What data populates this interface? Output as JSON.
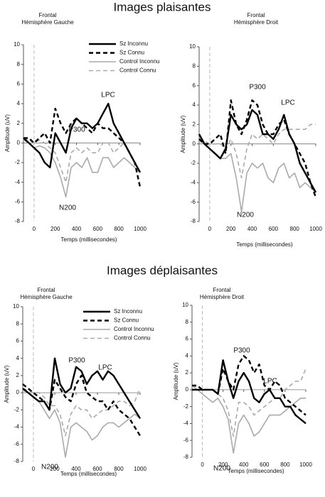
{
  "headings": [
    "Images plaisantes",
    "Images déplaisantes"
  ],
  "chart_data": [
    {
      "type": "line",
      "title": "Frontal",
      "subtitle": "Hémisphère Gauche",
      "xlabel": "Temps (millisecondes)",
      "ylabel": "Amplitude (uV)",
      "x": [
        -100,
        -50,
        0,
        50,
        100,
        150,
        200,
        250,
        300,
        350,
        400,
        450,
        500,
        550,
        600,
        650,
        700,
        750,
        800,
        850,
        900,
        950,
        1000
      ],
      "series": [
        {
          "name": "Sz Inconnu",
          "color": "#000000",
          "dash": "solid",
          "values": [
            0.5,
            0,
            -0.5,
            -1,
            -2,
            -2.5,
            1,
            0,
            -1,
            1.5,
            2.5,
            2,
            2,
            1.5,
            2,
            3,
            4,
            2,
            1,
            0,
            -1,
            -2,
            -3
          ]
        },
        {
          "name": "Sz Connu",
          "color": "#000000",
          "dash": "dashed",
          "values": [
            0.5,
            0.5,
            0,
            0.5,
            1,
            0,
            3.5,
            2,
            1,
            2,
            2.5,
            2,
            1.5,
            1,
            2,
            1.5,
            1.5,
            1,
            0.5,
            0,
            -1,
            -2,
            -4.5
          ]
        },
        {
          "name": "Control Inconnu",
          "color": "#aaaaaa",
          "dash": "solid",
          "values": [
            0.3,
            0,
            -0.5,
            -0.3,
            -0.5,
            -1,
            -2,
            -3.5,
            -5.5,
            -2.5,
            -2,
            -2.5,
            -1.5,
            -3,
            -3,
            -1.5,
            -1.5,
            -2.5,
            -2,
            -1.5,
            -2,
            -2.5,
            -3
          ]
        },
        {
          "name": "Control Connu",
          "color": "#aaaaaa",
          "dash": "dashed",
          "values": [
            0.5,
            0.3,
            0,
            0.3,
            0,
            -0.5,
            -1,
            -2.5,
            -4,
            -1,
            -0.5,
            -1,
            -0.5,
            -1,
            -1,
            0,
            0,
            -1,
            -0.5,
            0,
            0,
            0,
            0
          ]
        }
      ],
      "xlim": [
        -100,
        1000
      ],
      "ylim": [
        -8,
        10
      ],
      "xticks": [
        0,
        200,
        400,
        600,
        800,
        1000
      ],
      "yticks": [
        -8,
        -6,
        -4,
        -2,
        0,
        2,
        4,
        6,
        8,
        10
      ],
      "legend": true,
      "annotations": [
        "P300",
        "LPC",
        "N200"
      ]
    },
    {
      "type": "line",
      "title": "Frontal",
      "subtitle": "Hémisphère Droit",
      "xlabel": "Temps (millisecondes)",
      "ylabel": "Amplitude (uV)",
      "x": [
        -100,
        -50,
        0,
        50,
        100,
        150,
        200,
        250,
        300,
        350,
        400,
        450,
        500,
        550,
        600,
        650,
        700,
        750,
        800,
        850,
        900,
        950,
        1000
      ],
      "series": [
        {
          "color": "#000000",
          "dash": "solid",
          "values": [
            1,
            0,
            -0.5,
            -1,
            -1.5,
            -0.5,
            3,
            2,
            1.5,
            2,
            3.5,
            3,
            1,
            1,
            0.5,
            1.5,
            3,
            1,
            0,
            -2,
            -3,
            -4,
            -5
          ]
        },
        {
          "color": "#000000",
          "dash": "dashed",
          "values": [
            0.5,
            0,
            0,
            0.5,
            1,
            -1,
            4.5,
            2,
            1,
            2.5,
            4.5,
            4,
            2,
            1,
            1,
            2,
            2.5,
            1,
            0,
            -1,
            -2,
            -4,
            -5.5
          ]
        },
        {
          "color": "#aaaaaa",
          "dash": "solid",
          "values": [
            0.3,
            0,
            -0.5,
            -1,
            -1.5,
            -1.5,
            -1,
            -3.5,
            -7,
            -3,
            -2,
            -2.5,
            -2,
            -3.5,
            -4,
            -2.5,
            -2,
            -3.5,
            -3,
            -4.5,
            -4,
            -4.5,
            -5
          ]
        },
        {
          "color": "#aaaaaa",
          "dash": "dashed",
          "values": [
            0.5,
            0.3,
            0,
            0,
            0,
            -0.5,
            0.5,
            -1,
            -3.5,
            -0.5,
            1,
            0.5,
            1,
            0.5,
            0,
            1,
            1.5,
            1.5,
            1.5,
            1.5,
            1.5,
            2,
            2
          ]
        }
      ],
      "xlim": [
        -100,
        1000
      ],
      "ylim": [
        -8,
        10
      ],
      "xticks": [
        0,
        200,
        400,
        600,
        800,
        1000
      ],
      "yticks": [
        -8,
        -6,
        -4,
        -2,
        0,
        2,
        4,
        6,
        8,
        10
      ],
      "legend": false,
      "annotations": [
        "P300",
        "LPC",
        "N200"
      ]
    },
    {
      "type": "line",
      "title": "Frontal",
      "subtitle": "Hémisphère Gauche",
      "xlabel": "Temps (millisecondes)",
      "ylabel": "Amplitude (uV)",
      "x": [
        -100,
        -50,
        0,
        50,
        100,
        150,
        200,
        250,
        300,
        350,
        400,
        450,
        500,
        550,
        600,
        650,
        700,
        750,
        800,
        850,
        900,
        950,
        1000
      ],
      "series": [
        {
          "name": "Sz Inconnu",
          "color": "#000000",
          "dash": "solid",
          "values": [
            0.5,
            0,
            -0.5,
            -1,
            -1,
            -2,
            4,
            1,
            0,
            0.5,
            3,
            2.5,
            1,
            2,
            2.5,
            1.5,
            2.5,
            2,
            1,
            0,
            -1,
            -2,
            -3
          ]
        },
        {
          "name": "Sz Connu",
          "color": "#000000",
          "dash": "dashed",
          "values": [
            1,
            0.5,
            0,
            -0.5,
            -1,
            -2,
            1.5,
            0.5,
            -0.5,
            -1,
            1,
            2,
            0,
            -0.5,
            -1,
            -1,
            -2,
            -1,
            -2,
            -2.5,
            -3,
            -4,
            -5
          ]
        },
        {
          "name": "Control Inconnu",
          "color": "#aaaaaa",
          "dash": "solid",
          "values": [
            0.3,
            0,
            -0.5,
            -1,
            -2,
            -3,
            -2,
            -3.5,
            -7.5,
            -4,
            -3.5,
            -4,
            -4.5,
            -5.5,
            -5,
            -4,
            -3.5,
            -3.5,
            -4,
            -3.5,
            -3,
            -2.5,
            -3
          ]
        },
        {
          "name": "Control Connu",
          "color": "#aaaaaa",
          "dash": "dashed",
          "values": [
            0.5,
            0.3,
            0,
            0,
            -0.5,
            -1.5,
            -1.5,
            -2.5,
            -5,
            -2.5,
            -1.5,
            -2,
            -2,
            -3,
            -2.5,
            -2,
            -2,
            -1.5,
            -1,
            -1,
            -1.5,
            -1,
            0.5
          ]
        }
      ],
      "xlim": [
        -100,
        1000
      ],
      "ylim": [
        -8,
        10
      ],
      "xticks": [
        0,
        200,
        400,
        600,
        800,
        1000
      ],
      "yticks": [
        -8,
        -6,
        -4,
        -2,
        0,
        2,
        4,
        6,
        8,
        10
      ],
      "legend": true,
      "annotations": [
        "P300",
        "LPC",
        "N200"
      ]
    },
    {
      "type": "line",
      "title": "Frontal",
      "subtitle": "Hémisphère Droit",
      "xlabel": "Temps (millisecondes)",
      "ylabel": "Amplitude (uV)",
      "x": [
        -100,
        -50,
        0,
        50,
        100,
        150,
        200,
        250,
        300,
        350,
        400,
        450,
        500,
        550,
        600,
        650,
        700,
        750,
        800,
        850,
        900,
        950,
        1000
      ],
      "series": [
        {
          "color": "#000000",
          "dash": "solid",
          "values": [
            0,
            0,
            0,
            0,
            0,
            -0.5,
            3.5,
            1,
            -1,
            1,
            2,
            1,
            -1,
            -1.5,
            -0.5,
            0,
            -1,
            -1,
            -2,
            -2,
            -3,
            -3.5,
            -4
          ]
        },
        {
          "color": "#000000",
          "dash": "dashed",
          "values": [
            0.5,
            0.5,
            0,
            0,
            0,
            -0.5,
            2.5,
            1,
            0,
            3,
            4,
            3.5,
            2,
            3,
            0.5,
            0,
            1,
            0.5,
            -1,
            -1.5,
            -2,
            -2.5,
            -3
          ]
        },
        {
          "color": "#aaaaaa",
          "dash": "solid",
          "values": [
            0.5,
            0,
            -0.5,
            -1,
            -1.5,
            -1,
            -2,
            -3.5,
            -7.5,
            -4,
            -3,
            -4,
            -5.5,
            -5,
            -4,
            -3,
            -3,
            -3,
            -2.5,
            -2,
            -1.5,
            -1,
            -1
          ]
        },
        {
          "color": "#aaaaaa",
          "dash": "dashed",
          "values": [
            0.5,
            0.3,
            0,
            0,
            0,
            -0.5,
            -1,
            -2.5,
            -5.5,
            -1.5,
            -1.5,
            -2,
            -3,
            -2.5,
            -2,
            -1.5,
            -1,
            -1,
            0,
            0.5,
            1,
            1,
            2.5
          ]
        }
      ],
      "xlim": [
        -100,
        1000
      ],
      "ylim": [
        -8,
        10
      ],
      "xticks": [
        0,
        200,
        400,
        600,
        800,
        1000
      ],
      "yticks": [
        -8,
        -6,
        -4,
        -2,
        0,
        2,
        4,
        6,
        8,
        10
      ],
      "legend": false,
      "annotations": [
        "P300",
        "LPC",
        "N200"
      ]
    }
  ]
}
